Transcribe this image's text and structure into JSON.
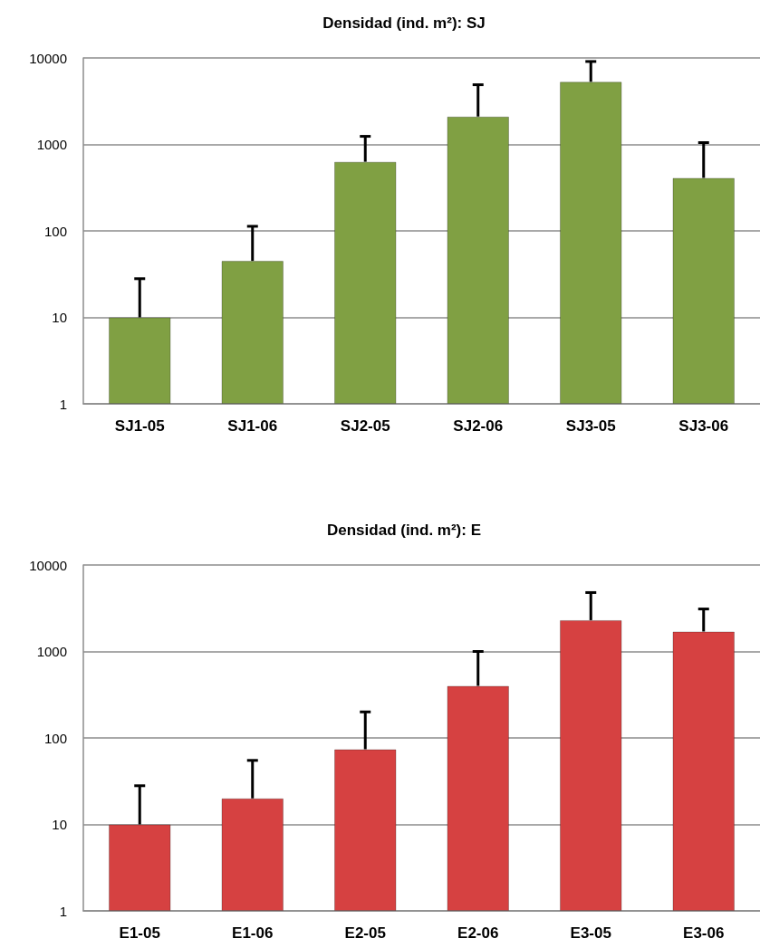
{
  "chart_data": [
    {
      "type": "bar",
      "title": "Densidad (ind. m²): SJ",
      "categories": [
        "SJ1-05",
        "SJ1-06",
        "SJ2-05",
        "SJ2-06",
        "SJ3-05",
        "SJ3-06"
      ],
      "values": [
        10,
        45,
        630,
        2100,
        5300,
        410
      ],
      "errors": [
        [
          10,
          28
        ],
        [
          45,
          113
        ],
        [
          630,
          1240
        ],
        [
          2100,
          4900
        ],
        [
          5300,
          9100
        ],
        [
          410,
          1050
        ]
      ],
      "color": "#80a043",
      "ylim": [
        1,
        10000
      ],
      "yticks": [
        1,
        10,
        100,
        1000,
        10000
      ],
      "log": true,
      "grid": "y"
    },
    {
      "type": "bar",
      "title": "Densidad (ind. m²): E",
      "categories": [
        "E1-05",
        "E1-06",
        "E2-05",
        "E2-06",
        "E3-05",
        "E3-06"
      ],
      "values": [
        10,
        20,
        74,
        400,
        2300,
        1700
      ],
      "errors": [
        [
          10,
          28
        ],
        [
          20,
          55
        ],
        [
          74,
          200
        ],
        [
          400,
          1000
        ],
        [
          2300,
          4800
        ],
        [
          1700,
          3100
        ]
      ],
      "color": "#d64141",
      "ylim": [
        1,
        10000
      ],
      "yticks": [
        1,
        10,
        100,
        1000,
        10000
      ],
      "log": true,
      "grid": "y"
    }
  ]
}
